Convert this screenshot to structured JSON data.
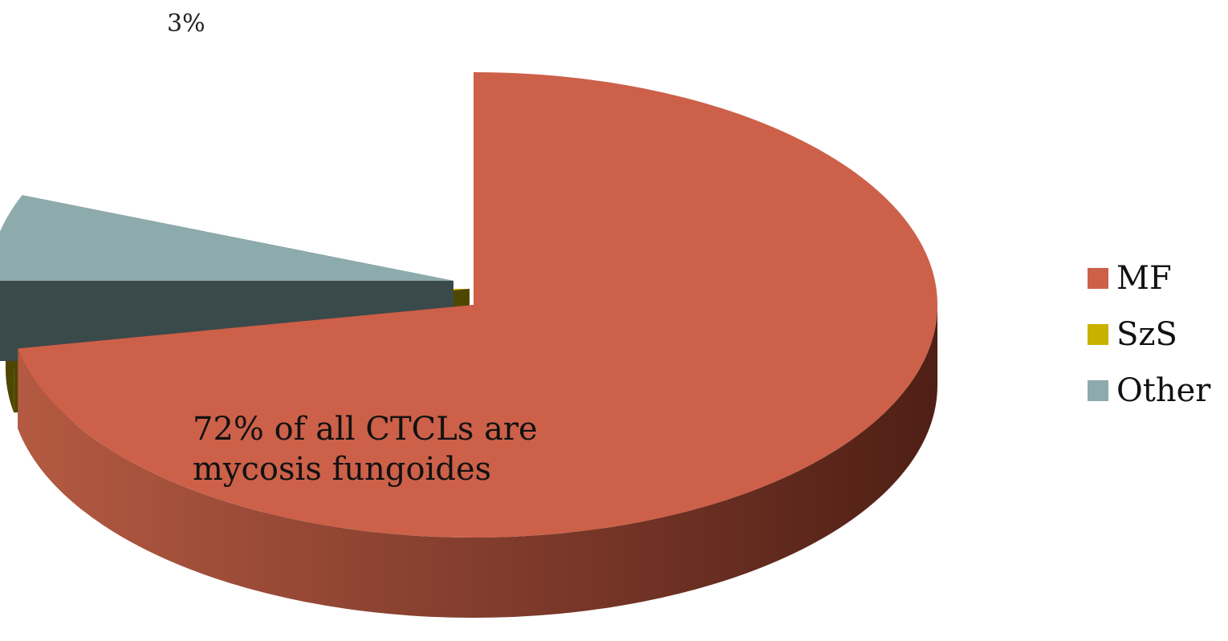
{
  "chart_data": {
    "type": "pie",
    "categories": [
      "MF",
      "SzS",
      "Other"
    ],
    "values": [
      72,
      3,
      6
    ],
    "data_labels": [
      {
        "category": "SzS",
        "text": "3%"
      }
    ],
    "annotation": [
      "72%  of all CTCLs  are",
      "mycosis fungoides"
    ],
    "legend": [
      "MF",
      "SzS",
      "Other"
    ],
    "legend_position": "right",
    "colors": [
      "#CC6049",
      "#C9B100",
      "#8DAAAC"
    ],
    "style": "3d-exploded"
  }
}
